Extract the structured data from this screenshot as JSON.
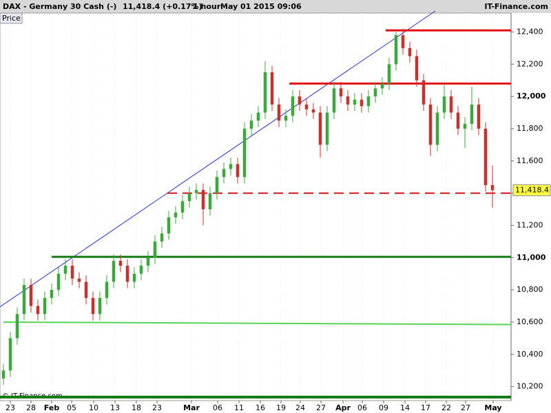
{
  "chart_data": {
    "type": "candlestick",
    "title": "DAX - Germany 30 Cash (-)",
    "last_change": "11,418.4 (+0.17%)",
    "interval": "1 hour",
    "datetime": "May 01 2015 09:06",
    "source": "IT-Finance.com",
    "panel_label": "Price",
    "copyright": "© IT-Finance.com",
    "last_price": {
      "value": 11418.4,
      "label": "11,418.4"
    },
    "up_color": "#3aa83a",
    "down_color": "#c8322d",
    "xlim": [
      -0.5,
      73.7
    ],
    "ylim": [
      10130,
      12530
    ],
    "xticks": [
      {
        "value": 1,
        "label": "23"
      },
      {
        "value": 4,
        "label": "28"
      },
      {
        "value": 7,
        "label": "Feb"
      },
      {
        "value": 9.9,
        "label": "05"
      },
      {
        "value": 13.1,
        "label": "10"
      },
      {
        "value": 16.2,
        "label": "13"
      },
      {
        "value": 19.3,
        "label": "18"
      },
      {
        "value": 22.3,
        "label": "23"
      },
      {
        "value": 27.3,
        "label": "Mar"
      },
      {
        "value": 31.1,
        "label": "06"
      },
      {
        "value": 34.2,
        "label": "11"
      },
      {
        "value": 37.3,
        "label": "16"
      },
      {
        "value": 40.3,
        "label": "19"
      },
      {
        "value": 43.1,
        "label": "24"
      },
      {
        "value": 46.1,
        "label": "27"
      },
      {
        "value": 49.3,
        "label": "Apr"
      },
      {
        "value": 52.1,
        "label": "06"
      },
      {
        "value": 55.2,
        "label": "09"
      },
      {
        "value": 58.3,
        "label": "14"
      },
      {
        "value": 61.3,
        "label": "17"
      },
      {
        "value": 64.3,
        "label": "22"
      },
      {
        "value": 67.1,
        "label": "27"
      },
      {
        "value": 71.1,
        "label": "May"
      }
    ],
    "yticks": [
      {
        "value": 10200,
        "label": "10,200"
      },
      {
        "value": 10400,
        "label": "10,400"
      },
      {
        "value": 10600,
        "label": "10,600"
      },
      {
        "value": 10800,
        "label": "10,800"
      },
      {
        "value": 11000,
        "label": "11,000"
      },
      {
        "value": 11200,
        "label": "11,200"
      },
      {
        "value": 11400,
        "label": "11,400"
      },
      {
        "value": 11600,
        "label": "11,600"
      },
      {
        "value": 11800,
        "label": "11,800"
      },
      {
        "value": 12000,
        "label": "12,000"
      },
      {
        "value": 12200,
        "label": "12,200"
      },
      {
        "value": 12400,
        "label": "12,400"
      }
    ],
    "open": [
      10250,
      10300,
      10500,
      10650,
      10830,
      10700,
      10650,
      10750,
      10800,
      10900,
      10950,
      10870,
      10850,
      10750,
      10650,
      10750,
      10850,
      10980,
      10950,
      10850,
      10900,
      10950,
      11000,
      11100,
      11150,
      11250,
      11280,
      11350,
      11400,
      11420,
      11300,
      11400,
      11500,
      11550,
      11580,
      11500,
      11800,
      11850,
      11900,
      12150,
      11950,
      11850,
      11880,
      12000,
      11950,
      11920,
      11900,
      11700,
      11900,
      12050,
      12000,
      11950,
      11980,
      11940,
      12000,
      12050,
      12080,
      12200,
      12380,
      12300,
      12250,
      12100,
      11950,
      11700,
      11900,
      12000,
      11900,
      11800,
      11830,
      11950,
      11800,
      11450
    ],
    "high": [
      10340,
      10540,
      10690,
      10870,
      10870,
      10740,
      10790,
      10840,
      10940,
      10990,
      10990,
      10910,
      10890,
      10790,
      10790,
      10890,
      11020,
      11020,
      10990,
      10940,
      10990,
      11040,
      11140,
      11190,
      11290,
      11320,
      11390,
      11440,
      11460,
      11460,
      11440,
      11540,
      11590,
      11620,
      11620,
      11840,
      11890,
      11940,
      12220,
      12190,
      11990,
      11920,
      12040,
      12040,
      11990,
      11960,
      11940,
      11940,
      12090,
      12090,
      12040,
      12020,
      12020,
      12040,
      12090,
      12120,
      12240,
      12400,
      12420,
      12340,
      12290,
      12140,
      11990,
      11940,
      12070,
      12040,
      11940,
      11870,
      12060,
      11990,
      11840,
      11570
    ],
    "low": [
      10210,
      10260,
      10460,
      10610,
      10660,
      10610,
      10610,
      10710,
      10760,
      10860,
      10830,
      10810,
      10710,
      10610,
      10610,
      10710,
      10810,
      10910,
      10810,
      10810,
      10860,
      10910,
      10960,
      11060,
      11110,
      11210,
      11240,
      11310,
      11360,
      11200,
      11260,
      11360,
      11460,
      11510,
      11460,
      11460,
      11760,
      11810,
      11860,
      11910,
      11810,
      11810,
      11840,
      11910,
      11880,
      11860,
      11620,
      11660,
      11860,
      11960,
      11910,
      11910,
      11900,
      11900,
      11960,
      12010,
      12040,
      12160,
      12260,
      12210,
      12060,
      11910,
      11630,
      11660,
      11860,
      11860,
      11760,
      11680,
      11790,
      11760,
      11410,
      11310
    ],
    "close": [
      10300,
      10500,
      10650,
      10830,
      10700,
      10650,
      10750,
      10800,
      10900,
      10950,
      10870,
      10850,
      10750,
      10650,
      10750,
      10850,
      10980,
      10950,
      10850,
      10900,
      10950,
      11000,
      11100,
      11150,
      11250,
      11280,
      11350,
      11400,
      11420,
      11300,
      11400,
      11500,
      11550,
      11580,
      11500,
      11800,
      11850,
      11900,
      12150,
      11950,
      11850,
      11880,
      12000,
      11950,
      11920,
      11900,
      11700,
      11900,
      12050,
      12000,
      11950,
      11980,
      11940,
      12000,
      12050,
      12080,
      12200,
      12380,
      12300,
      12250,
      12100,
      11950,
      11700,
      11900,
      12000,
      11900,
      11800,
      11830,
      11950,
      11800,
      11450,
      11418.4
    ],
    "lines": [
      {
        "x": [
          -0.5,
          62.7
        ],
        "y": [
          10695,
          12530
        ],
        "color": "#1f2fd0",
        "width": 1,
        "dashed": false
      },
      {
        "x": [
          55.5,
          73.7
        ],
        "y": [
          12410,
          12410
        ],
        "color": "#e01010",
        "width": 3,
        "dashed": false
      },
      {
        "x": [
          41.5,
          73.7
        ],
        "y": [
          12080,
          12080
        ],
        "color": "#e01010",
        "width": 3,
        "dashed": false
      },
      {
        "x": [
          23.8,
          73.7
        ],
        "y": [
          11400,
          11400
        ],
        "color": "#d01010",
        "width": 2,
        "dashed": true
      },
      {
        "x": [
          7,
          73.7
        ],
        "y": [
          11005,
          11005
        ],
        "color": "#137a13",
        "width": 3,
        "dashed": false
      },
      {
        "x": [
          0,
          73.7
        ],
        "y": [
          10600,
          10585
        ],
        "color": "#55d455",
        "width": 2,
        "dashed": false
      },
      {
        "x": [
          -0.5,
          73.7
        ],
        "y": [
          10135,
          10135
        ],
        "color": "#137a13",
        "width": 4,
        "dashed": false
      }
    ]
  }
}
